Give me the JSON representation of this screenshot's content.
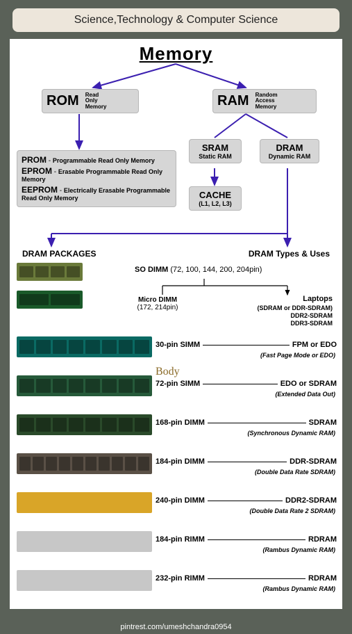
{
  "header": {
    "title": "Science,Technology & Computer Science"
  },
  "title": "Memory",
  "footer": "pintrest.com/umeshchandra0954",
  "colors": {
    "page_bg": "#5a6158",
    "pill_bg": "#ede6db",
    "card_bg": "#ffffff",
    "node_bg": "#d6d6d6",
    "arrow": "#3b1fb0",
    "arrow_black": "#000000"
  },
  "nodes": {
    "rom": {
      "label": "ROM",
      "sub": "Read\nOnly\nMemory"
    },
    "ram": {
      "label": "RAM",
      "sub": "Random\nAccess\nMemory"
    },
    "sram": {
      "label": "SRAM",
      "sub": "Static RAM"
    },
    "dram": {
      "label": "DRAM",
      "sub": "Dynamic RAM"
    },
    "cache": {
      "label": "CACHE",
      "sub": "(L1, L2, L3)"
    },
    "prom_list": [
      {
        "k": "PROM",
        "d": "Programmable Read Only Memory"
      },
      {
        "k": "EPROM",
        "d": "Erasable Programmable Read Only Memory"
      },
      {
        "k": "EEPROM",
        "d": "Electrically Erasable Programmable Read Only Memory"
      }
    ]
  },
  "section_left": "DRAM PACKAGES",
  "section_right": "DRAM Types & Uses",
  "sodimm": {
    "label": "SO DIMM",
    "detail": "(72, 100, 144, 200, 204pin)"
  },
  "micro": {
    "label": "Micro DIMM",
    "detail": "(172, 214pin)"
  },
  "laptops": {
    "title": "Laptops",
    "l1": "(SDRAM or DDR-SDRAM)",
    "l2": "DDR2-SDRAM",
    "l3": "DDR3-SDRAM"
  },
  "body_word": "Body",
  "modules": [
    {
      "pin": "30-pin SIMM",
      "type": "FPM or EDO",
      "sub": "(Fast Page Mode or EDO)",
      "color": "#0a6a63",
      "chips": 8
    },
    {
      "pin": "72-pin SIMM",
      "type": "EDO or SDRAM",
      "sub": "(Extended Data Out)",
      "color": "#265a3a",
      "chips": 8
    },
    {
      "pin": "168-pin DIMM",
      "type": "SDRAM",
      "sub": "(Synchronous Dynamic RAM)",
      "color": "#2a4a2a",
      "chips": 8
    },
    {
      "pin": "184-pin DIMM",
      "type": "DDR-SDRAM",
      "sub": "(Double Data Rate SDRAM)",
      "color": "#5a5046",
      "chips": 10
    },
    {
      "pin": "240-pin DIMM",
      "type": "DDR2-SDRAM",
      "sub": "(Double Data Rate 2 SDRAM)",
      "color": "#d9a528",
      "chips": 0
    },
    {
      "pin": "184-pin RIMM",
      "type": "RDRAM",
      "sub": "(Rambus Dynamic RAM)",
      "color": "#c7c7c7",
      "chips": 0
    },
    {
      "pin": "232-pin RIMM",
      "type": "RDRAM",
      "sub": "(Rambus Dynamic RAM)",
      "color": "#c7c7c7",
      "chips": 0
    }
  ],
  "small_modules": [
    {
      "color": "#6a7a3a",
      "chips": 4
    },
    {
      "color": "#1a5a2a",
      "chips": 2
    }
  ]
}
